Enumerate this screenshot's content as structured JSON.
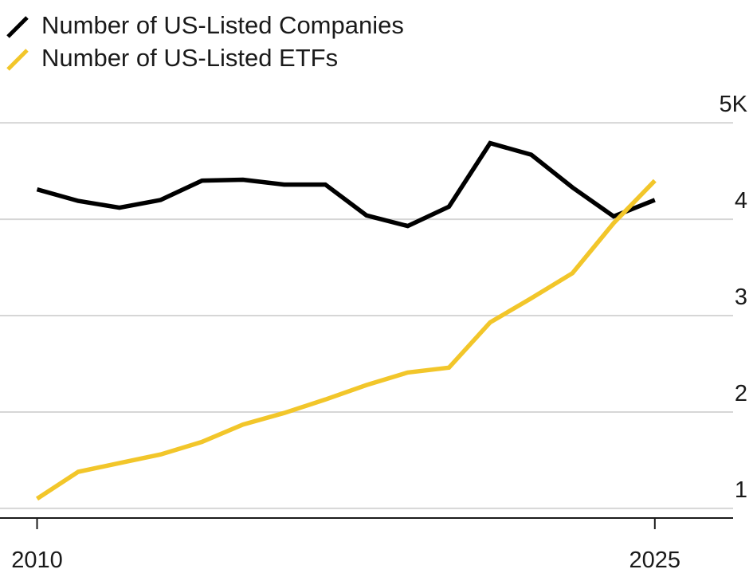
{
  "chart_data": {
    "type": "line",
    "x": [
      2010,
      2011,
      2012,
      2013,
      2014,
      2015,
      2016,
      2017,
      2018,
      2019,
      2020,
      2021,
      2022,
      2023,
      2024,
      2025
    ],
    "series": [
      {
        "name": "Number of US-Listed Companies",
        "color": "#000000",
        "values": [
          4.31,
          4.19,
          4.12,
          4.2,
          4.4,
          4.41,
          4.36,
          4.36,
          4.04,
          3.93,
          4.13,
          4.79,
          4.67,
          4.33,
          4.03,
          4.2
        ]
      },
      {
        "name": "Number of US-Listed ETFs",
        "color": "#f2c62a",
        "values": [
          1.1,
          1.38,
          1.47,
          1.56,
          1.69,
          1.87,
          1.99,
          2.13,
          2.28,
          2.41,
          2.46,
          2.93,
          3.18,
          3.44,
          3.96,
          4.4
        ]
      }
    ],
    "ylim": [
      0.9,
      5.2
    ],
    "xlim": [
      2009.1,
      2026.9
    ],
    "yticks": [
      {
        "value": 1,
        "label": "1"
      },
      {
        "value": 2,
        "label": "2"
      },
      {
        "value": 3,
        "label": "3"
      },
      {
        "value": 4,
        "label": "4"
      },
      {
        "value": 5,
        "label": "5K"
      }
    ],
    "xticks": [
      {
        "value": 2010,
        "label": "2010"
      },
      {
        "value": 2025,
        "label": "2025"
      }
    ],
    "grid": true,
    "legend_position": "top-left",
    "title": "",
    "xlabel": "",
    "ylabel": ""
  }
}
